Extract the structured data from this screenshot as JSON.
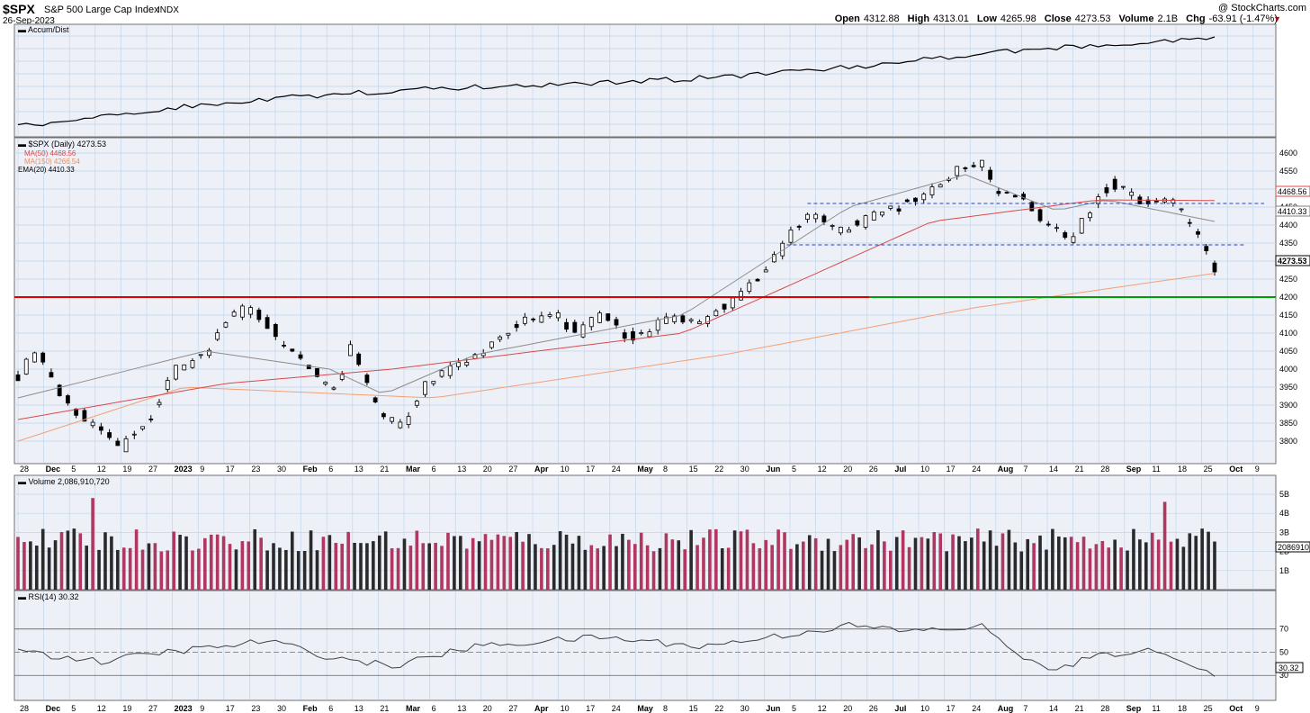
{
  "header": {
    "symbol": "$SPX",
    "name": "S&P 500 Large Cap Index",
    "exchange": "INDX",
    "date": "26-Sep-2023",
    "watermark": "@ StockCharts.com",
    "open_label": "Open",
    "open": "4312.88",
    "high_label": "High",
    "high": "4313.01",
    "low_label": "Low",
    "low": "4265.98",
    "close_label": "Close",
    "close": "4273.53",
    "volume_label": "Volume",
    "volume": "2.1B",
    "chg_label": "Chg",
    "chg": "-63.91 (-1.47%)",
    "chg_arrow": "▼"
  },
  "colors": {
    "panel_bg": "#eef0f8",
    "grid": "#bfd6ea",
    "up": "#ffffff",
    "down": "#000000",
    "ma50": "#d84a4a",
    "ma150": "#f2a078",
    "ema20": "#8c8c8c",
    "resistance": "#e00000",
    "support": "#00a000",
    "range": "#2040d0",
    "vol_up": "#b0375f",
    "vol_down": "#2a2a2a"
  },
  "panels": {
    "accum": {
      "label": "Accum/Dist"
    },
    "price": {
      "label": "$SPX (Daily) 4273.53",
      "ma50_label": "MA(50) 4468.56",
      "ma150_label": "MA(150) 4266.54",
      "ema20_label": "EMA(20) 4410.33",
      "tag_ma50": "4468.56",
      "tag_ema20": "4410.33",
      "tag_close": "4273.53",
      "y_ticks": [
        "4600",
        "4550",
        "4500",
        "4450",
        "4400",
        "4350",
        "4300",
        "4250",
        "4200",
        "4150",
        "4100",
        "4050",
        "4000",
        "3950",
        "3900",
        "3850",
        "3800"
      ]
    },
    "volume": {
      "label": "Volume 2,086,910,720",
      "tag": "2086910",
      "y_ticks": [
        "5B",
        "4B",
        "3B",
        "2B",
        "1B"
      ]
    },
    "rsi": {
      "label": "RSI(14) 30.32",
      "tag": "30.32",
      "y_ticks": [
        "70",
        "50",
        "30"
      ]
    }
  },
  "x_axis": [
    "28",
    "Dec",
    "5",
    "12",
    "19",
    "27",
    "2023",
    "9",
    "17",
    "23",
    "30",
    "Feb",
    "6",
    "13",
    "21",
    "Mar",
    "6",
    "13",
    "20",
    "27",
    "Apr",
    "10",
    "17",
    "24",
    "May",
    "8",
    "15",
    "22",
    "30",
    "Jun",
    "5",
    "12",
    "20",
    "26",
    "Jul",
    "10",
    "17",
    "24",
    "Aug",
    "7",
    "14",
    "21",
    "28",
    "Sep",
    "11",
    "18",
    "25",
    "Oct",
    "9"
  ],
  "chart_data": {
    "type": "candlestick",
    "title": "$SPX S&P 500 Large Cap Index INDX",
    "y_range": [
      3750,
      4625
    ],
    "anchors": [
      [
        0,
        3980
      ],
      [
        4,
        4050
      ],
      [
        10,
        3920
      ],
      [
        18,
        3850
      ],
      [
        25,
        3790
      ],
      [
        32,
        3870
      ],
      [
        38,
        4000
      ],
      [
        45,
        4030
      ],
      [
        50,
        4130
      ],
      [
        56,
        4180
      ],
      [
        63,
        4080
      ],
      [
        70,
        4000
      ],
      [
        76,
        3940
      ],
      [
        80,
        4060
      ],
      [
        87,
        3870
      ],
      [
        92,
        3840
      ],
      [
        98,
        3960
      ],
      [
        105,
        4000
      ],
      [
        110,
        4030
      ],
      [
        115,
        4100
      ],
      [
        122,
        4130
      ],
      [
        128,
        4160
      ],
      [
        135,
        4100
      ],
      [
        140,
        4150
      ],
      [
        148,
        4080
      ],
      [
        155,
        4130
      ],
      [
        165,
        4140
      ],
      [
        172,
        4190
      ],
      [
        180,
        4270
      ],
      [
        185,
        4360
      ],
      [
        190,
        4430
      ],
      [
        198,
        4380
      ],
      [
        205,
        4420
      ],
      [
        212,
        4450
      ],
      [
        220,
        4500
      ],
      [
        227,
        4560
      ],
      [
        232,
        4580
      ],
      [
        235,
        4500
      ],
      [
        242,
        4470
      ],
      [
        248,
        4400
      ],
      [
        253,
        4350
      ],
      [
        258,
        4440
      ],
      [
        263,
        4520
      ],
      [
        270,
        4460
      ],
      [
        276,
        4480
      ],
      [
        282,
        4410
      ],
      [
        286,
        4320
      ],
      [
        288,
        4273
      ]
    ],
    "ma50": [
      [
        0,
        3860
      ],
      [
        50,
        3960
      ],
      [
        90,
        4000
      ],
      [
        160,
        4100
      ],
      [
        220,
        4410
      ],
      [
        260,
        4470
      ],
      [
        288,
        4468
      ]
    ],
    "ma150": [
      [
        0,
        3800
      ],
      [
        40,
        3950
      ],
      [
        100,
        3920
      ],
      [
        170,
        4040
      ],
      [
        230,
        4170
      ],
      [
        288,
        4266
      ]
    ],
    "ema20": [
      [
        0,
        3920
      ],
      [
        45,
        4050
      ],
      [
        75,
        4000
      ],
      [
        88,
        3930
      ],
      [
        110,
        4040
      ],
      [
        160,
        4150
      ],
      [
        200,
        4450
      ],
      [
        228,
        4540
      ],
      [
        250,
        4440
      ],
      [
        262,
        4470
      ],
      [
        288,
        4410
      ]
    ],
    "resistance": 4200,
    "range_high": 4460,
    "range_low": 4345,
    "volume_range_b": [
      0,
      5.8
    ],
    "volume_spikes_b": [
      [
        4,
        4.0
      ],
      [
        18,
        4.8
      ],
      [
        100,
        4.3
      ],
      [
        106,
        5.8
      ],
      [
        190,
        4.6
      ],
      [
        208,
        4.3
      ],
      [
        276,
        4.6
      ],
      [
        286,
        2.1
      ]
    ],
    "rsi": [
      [
        0,
        55
      ],
      [
        6,
        48
      ],
      [
        20,
        42
      ],
      [
        35,
        50
      ],
      [
        50,
        55
      ],
      [
        60,
        60
      ],
      [
        75,
        46
      ],
      [
        90,
        38
      ],
      [
        110,
        55
      ],
      [
        140,
        63
      ],
      [
        165,
        55
      ],
      [
        185,
        65
      ],
      [
        200,
        73
      ],
      [
        215,
        68
      ],
      [
        232,
        72
      ],
      [
        237,
        58
      ],
      [
        248,
        33
      ],
      [
        258,
        45
      ],
      [
        270,
        52
      ],
      [
        280,
        45
      ],
      [
        288,
        30.32
      ]
    ]
  }
}
